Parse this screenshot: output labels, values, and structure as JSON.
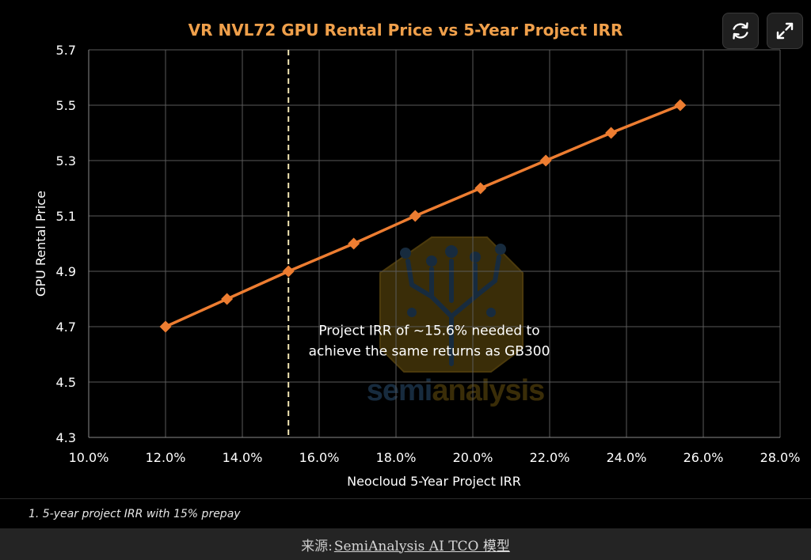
{
  "chart_data": {
    "type": "line",
    "title": "VR NVL72 GPU Rental Price vs 5-Year Project IRR",
    "xlabel": "Neocloud 5-Year Project IRR",
    "ylabel": "GPU Rental Price",
    "xlim": [
      10.0,
      28.0
    ],
    "ylim": [
      4.3,
      5.7
    ],
    "x_ticks": [
      10,
      12,
      14,
      16,
      18,
      20,
      22,
      24,
      26,
      28
    ],
    "y_ticks": [
      4.3,
      4.5,
      4.7,
      4.9,
      5.1,
      5.3,
      5.5,
      5.7
    ],
    "x_tick_labels": [
      "10.0%",
      "12.0%",
      "14.0%",
      "16.0%",
      "18.0%",
      "20.0%",
      "22.0%",
      "24.0%",
      "26.0%",
      "28.0%"
    ],
    "y_tick_labels": [
      "4.3",
      "4.5",
      "4.7",
      "4.9",
      "5.1",
      "5.3",
      "5.5",
      "5.7"
    ],
    "grid": true,
    "series": [
      {
        "color": "#ED7D31",
        "marker": "diamond",
        "points": [
          {
            "x": 12.0,
            "y": 4.7
          },
          {
            "x": 13.6,
            "y": 4.8
          },
          {
            "x": 15.2,
            "y": 4.9
          },
          {
            "x": 16.9,
            "y": 5.0
          },
          {
            "x": 18.5,
            "y": 5.1
          },
          {
            "x": 20.2,
            "y": 5.2
          },
          {
            "x": 21.9,
            "y": 5.3
          },
          {
            "x": 23.6,
            "y": 5.4
          },
          {
            "x": 25.4,
            "y": 5.5
          }
        ]
      }
    ],
    "reference_line": {
      "axis": "x",
      "value": 15.2,
      "style": "dashed",
      "color": "#F2E6B3"
    },
    "annotation": {
      "lines": [
        "Project IRR of ~15.6% needed to",
        "achieve the same returns as GB300"
      ],
      "x": 20.0,
      "y": 4.71
    },
    "watermark": "semianalysis"
  },
  "colors": {
    "title": "#F0A04B",
    "series": "#ED7D31",
    "background": "#000000",
    "grid": "#5a5a5a",
    "reference_line": "#F2E6B3"
  },
  "toolbar": {
    "refresh_icon": "refresh-icon",
    "expand_icon": "expand-icon"
  },
  "footnote": "1. 5-year project IRR with 15% prepay",
  "source": {
    "prefix": "来源:",
    "link_text": "SemiAnalysis AI TCO 模型"
  }
}
